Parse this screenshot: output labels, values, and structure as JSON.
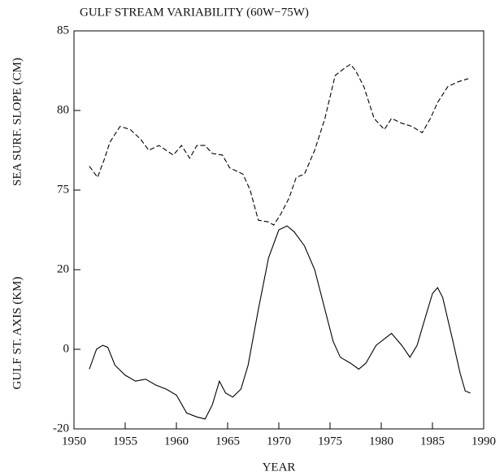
{
  "chart_data": {
    "type": "line",
    "title": "GULF STREAM VARIABILITY (60W−75W)",
    "xlabel": "YEAR",
    "ylabel": "GULF ST. AXIS (KM)",
    "y2label": "SEA SURF. SLOPE (CM)",
    "xlim": [
      1950,
      1990
    ],
    "xticks": [
      1950,
      1955,
      1960,
      1965,
      1970,
      1975,
      1980,
      1985,
      1990
    ],
    "ylim": [
      -20,
      80
    ],
    "yticks": [
      -20,
      0,
      20
    ],
    "y2lim": [
      60,
      85
    ],
    "y2ticks": [
      75,
      80,
      85
    ],
    "series": [
      {
        "color": "#000000",
        "dash": true,
        "axis": "y2",
        "x": [
          1951.5,
          1952.3,
          1953,
          1953.5,
          1954.5,
          1955.5,
          1956.5,
          1957.3,
          1958.3,
          1959,
          1959.7,
          1960.5,
          1961.3,
          1962,
          1962.8,
          1963.5,
          1964.5,
          1965.2,
          1966.5,
          1967.2,
          1968,
          1969,
          1969.5,
          1970.2,
          1971,
          1971.7,
          1972.5,
          1973.5,
          1974.5,
          1975.5,
          1976.5,
          1977,
          1977.5,
          1978.3,
          1979.3,
          1980.3,
          1981,
          1982,
          1983,
          1984,
          1984.8,
          1985.5,
          1986.5,
          1987.5,
          1988.5
        ],
        "values": [
          76.5,
          75.8,
          77,
          78,
          79,
          78.8,
          78.2,
          77.5,
          77.8,
          77.5,
          77.2,
          77.8,
          77.0,
          77.8,
          77.8,
          77.3,
          77.2,
          76.4,
          76.0,
          75.0,
          73.1,
          73.0,
          72.8,
          73.5,
          74.5,
          75.8,
          76.0,
          77.5,
          79.5,
          82.2,
          82.7,
          82.9,
          82.5,
          81.5,
          79.5,
          78.8,
          79.5,
          79.2,
          79.0,
          78.6,
          79.5,
          80.5,
          81.5,
          81.8,
          82.0
        ]
      },
      {
        "color": "#000000",
        "dash": false,
        "x": [
          1951.5,
          1952.2,
          1952.8,
          1953.3,
          1954,
          1955,
          1956,
          1957,
          1958,
          1959,
          1960,
          1961,
          1962,
          1962.8,
          1963.5,
          1964.2,
          1964.8,
          1965.5,
          1966.3,
          1967,
          1968,
          1969,
          1970,
          1970.8,
          1971.5,
          1972.5,
          1973.5,
          1974.5,
          1975.3,
          1976,
          1977,
          1977.8,
          1978.5,
          1979.5,
          1980.5,
          1981,
          1982,
          1982.8,
          1983.5,
          1984.3,
          1985,
          1985.5,
          1986,
          1987,
          1987.7,
          1988.2,
          1988.7
        ],
        "values": [
          -5,
          0,
          1,
          0.5,
          -4,
          -6.5,
          -8,
          -7.5,
          -9,
          -10,
          -11.5,
          -16,
          -17,
          -17.5,
          -14,
          -8,
          -11,
          -12,
          -10,
          -4,
          10,
          23,
          30,
          31,
          29.5,
          26,
          20,
          10,
          2,
          -2,
          -3.5,
          -5,
          -3.5,
          1,
          3,
          4,
          1,
          -2,
          1,
          8,
          14,
          15.5,
          13,
          2,
          -6,
          -10.5,
          -11
        ]
      }
    ]
  }
}
